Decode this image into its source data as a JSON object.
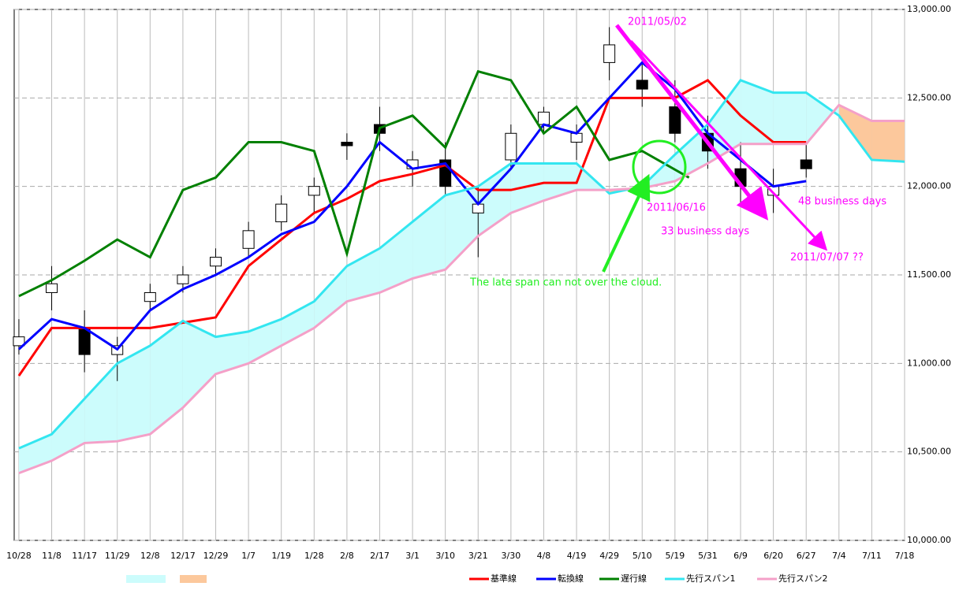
{
  "chart_data": {
    "type": "candlestick",
    "xlim": [
      -1,
      189
    ],
    "ylim": [
      10000,
      13000
    ],
    "xticks": [
      {
        "value": 0,
        "label": "10/28"
      },
      {
        "value": 7,
        "label": "11/8"
      },
      {
        "value": 14,
        "label": "11/17"
      },
      {
        "value": 21,
        "label": "11/29"
      },
      {
        "value": 28,
        "label": "12/8"
      },
      {
        "value": 35,
        "label": "12/17"
      },
      {
        "value": 42,
        "label": "12/29"
      },
      {
        "value": 49,
        "label": "1/7"
      },
      {
        "value": 56,
        "label": "1/19"
      },
      {
        "value": 63,
        "label": "1/28"
      },
      {
        "value": 70,
        "label": "2/8"
      },
      {
        "value": 77,
        "label": "2/17"
      },
      {
        "value": 84,
        "label": "3/1"
      },
      {
        "value": 91,
        "label": "3/10"
      },
      {
        "value": 98,
        "label": "3/21"
      },
      {
        "value": 105,
        "label": "3/30"
      },
      {
        "value": 112,
        "label": "4/8"
      },
      {
        "value": 119,
        "label": "4/19"
      },
      {
        "value": 126,
        "label": "4/29"
      },
      {
        "value": 133,
        "label": "5/10"
      },
      {
        "value": 140,
        "label": "5/19"
      },
      {
        "value": 147,
        "label": "5/31"
      },
      {
        "value": 154,
        "label": "6/9"
      },
      {
        "value": 161,
        "label": "6/20"
      },
      {
        "value": 168,
        "label": "6/27"
      },
      {
        "value": 175,
        "label": "7/4"
      },
      {
        "value": 182,
        "label": "7/11"
      },
      {
        "value": 189,
        "label": "7/18"
      }
    ],
    "yticks": [
      {
        "value": 10000,
        "label": "10,000.00"
      },
      {
        "value": 10500,
        "label": "10,500.00"
      },
      {
        "value": 11000,
        "label": "11,000.00"
      },
      {
        "value": 11500,
        "label": "11,500.00"
      },
      {
        "value": 12000,
        "label": "12,000.00"
      },
      {
        "value": 12500,
        "label": "12,500.00"
      },
      {
        "value": 13000,
        "label": "13,000.00"
      }
    ],
    "grid": true,
    "candles": {
      "x": [
        0,
        7,
        14,
        21,
        28,
        35,
        42,
        49,
        56,
        63,
        70,
        77,
        84,
        91,
        98,
        105,
        112,
        119,
        126,
        133,
        140,
        147,
        154,
        161,
        168
      ],
      "open": [
        11100,
        11400,
        11200,
        11050,
        11350,
        11450,
        11550,
        11650,
        11800,
        11950,
        12250,
        12350,
        12100,
        12150,
        11850,
        12150,
        12350,
        12250,
        12700,
        12600,
        12450,
        12300,
        12100,
        11950,
        12150
      ],
      "high": [
        11250,
        11550,
        11300,
        11150,
        11450,
        11550,
        11650,
        11800,
        11950,
        12050,
        12300,
        12450,
        12200,
        12250,
        12000,
        12350,
        12450,
        12350,
        12900,
        12700,
        12600,
        12400,
        12250,
        12100,
        12250
      ],
      "low": [
        11050,
        11300,
        10950,
        10900,
        11300,
        11400,
        11500,
        11600,
        11750,
        11850,
        12150,
        12200,
        12000,
        11950,
        11600,
        12100,
        12300,
        12150,
        12600,
        12450,
        12250,
        12100,
        11900,
        11850,
        12050
      ],
      "close": [
        11150,
        11450,
        11050,
        11100,
        11400,
        11500,
        11600,
        11750,
        11900,
        12000,
        12230,
        12300,
        12150,
        12000,
        11900,
        12300,
        12420,
        12300,
        12800,
        12550,
        12300,
        12200,
        12000,
        12000,
        12100
      ]
    },
    "cloud_colors": [
      "#ccfcfc",
      "#fcc89c"
    ],
    "series": [
      {
        "name": "基準線",
        "color": "#ff0000",
        "x": [
          0,
          7,
          14,
          21,
          28,
          35,
          42,
          49,
          56,
          63,
          70,
          77,
          84,
          91,
          98,
          105,
          112,
          119,
          126,
          133,
          140,
          147,
          154,
          161,
          168
        ],
        "values": [
          10930,
          11200,
          11200,
          11200,
          11200,
          11230,
          11260,
          11550,
          11700,
          11850,
          11930,
          12030,
          12070,
          12120,
          11980,
          11980,
          12020,
          12020,
          12500,
          12500,
          12500,
          12600,
          12400,
          12250,
          12250
        ]
      },
      {
        "name": "転換線",
        "color": "#0000ff",
        "x": [
          0,
          7,
          14,
          21,
          28,
          35,
          42,
          49,
          56,
          63,
          70,
          77,
          84,
          91,
          98,
          105,
          112,
          119,
          126,
          133,
          140,
          147,
          154,
          161,
          168
        ],
        "values": [
          11080,
          11250,
          11200,
          11080,
          11300,
          11420,
          11500,
          11600,
          11730,
          11800,
          12000,
          12250,
          12100,
          12130,
          11900,
          12100,
          12350,
          12300,
          12500,
          12700,
          12550,
          12300,
          12150,
          12000,
          12030
        ]
      },
      {
        "name": "遅行線",
        "color": "#008000",
        "x": [
          0,
          7,
          14,
          21,
          28,
          35,
          42,
          49,
          56,
          63,
          70,
          77,
          84,
          91,
          98,
          105,
          112,
          119,
          126,
          133,
          143
        ],
        "values": [
          11380,
          11470,
          11580,
          11700,
          11600,
          11980,
          12050,
          12250,
          12250,
          12200,
          11620,
          12330,
          12400,
          12220,
          12650,
          12600,
          12300,
          12450,
          12150,
          12200,
          12050
        ]
      },
      {
        "name": "先行スパン1",
        "color": "#33e6f0",
        "x": [
          0,
          7,
          14,
          21,
          28,
          35,
          42,
          49,
          56,
          63,
          70,
          77,
          84,
          91,
          98,
          105,
          112,
          119,
          126,
          133,
          140,
          147,
          154,
          161,
          168,
          175,
          182,
          189
        ],
        "values": [
          10520,
          10600,
          10800,
          11000,
          11100,
          11240,
          11150,
          11180,
          11250,
          11350,
          11550,
          11650,
          11800,
          11950,
          12000,
          12130,
          12130,
          12130,
          11960,
          12000,
          12180,
          12350,
          12600,
          12530,
          12530,
          12400,
          12150,
          12140
        ]
      },
      {
        "name": "先行スパン2",
        "color": "#f4a0c8",
        "x": [
          0,
          7,
          14,
          21,
          28,
          35,
          42,
          49,
          56,
          63,
          70,
          77,
          84,
          91,
          98,
          105,
          112,
          119,
          126,
          133,
          140,
          147,
          154,
          161,
          168,
          175,
          182,
          189
        ],
        "values": [
          10380,
          10450,
          10550,
          10560,
          10600,
          10750,
          10940,
          11000,
          11100,
          11200,
          11350,
          11400,
          11480,
          11530,
          11720,
          11850,
          11920,
          11980,
          11980,
          11990,
          12030,
          12130,
          12240,
          12240,
          12240,
          12460,
          12370,
          12370
        ]
      }
    ],
    "annotations": [
      "2011/05/02",
      "2011/06/16",
      "33 business days",
      "48 business days",
      "2011/07/07 ??",
      "The late span can not over the cloud."
    ]
  }
}
